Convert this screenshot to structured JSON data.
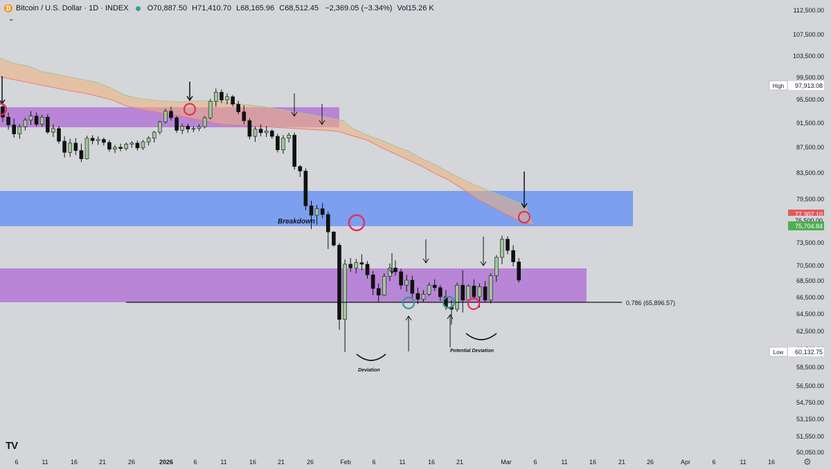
{
  "header": {
    "badge": "₿",
    "symbol": "Bitcoin / U.S. Dollar · 1D · INDEX",
    "open_label": "O",
    "open": "70,887.50",
    "high_label": "H",
    "high": "71,410.70",
    "low_label": "L",
    "low": "68,165.96",
    "close_label": "C",
    "close": "68,512.45",
    "change": "−2,369.05 (−3.34%)",
    "vol_label": "Vol",
    "vol": "15.26 K",
    "collapse_glyph": "⌄"
  },
  "footer": {
    "logo": "TV",
    "settings_icon": "⚙"
  },
  "colors": {
    "background": "#d4d6da",
    "candle_up": "#9fc79a",
    "candle_down": "#111111",
    "purple_zone": "#b06ad6",
    "blue_zone": "#5f8cf5",
    "red_circle": "#e0305a",
    "teal_circle": "#2a9d8f"
  },
  "chart_data": {
    "type": "candlestick",
    "y_axis_ticks": [
      "112,500.00",
      "107,500.00",
      "103,500.00",
      "99,500.00",
      "95,500.00",
      "91,500.00",
      "87,500.00",
      "83,500.00",
      "79,500.00",
      "73,500.00",
      "70,500.00",
      "68,500.00",
      "66,500.00",
      "64,500.00",
      "62,500.00",
      "60,500.00",
      "58,500.00",
      "56,500.00",
      "54,750.00",
      "53,150.00",
      "51,550.00",
      "50,050.00"
    ],
    "x_axis_ticks": [
      "6",
      "11",
      "16",
      "21",
      "26",
      "2026",
      "6",
      "11",
      "16",
      "21",
      "26",
      "Feb",
      "6",
      "11",
      "16",
      "21",
      "Mar",
      "6",
      "11",
      "16",
      "21",
      "26",
      "Apr",
      "6",
      "11",
      "16"
    ],
    "price_labels": [
      {
        "label": "High",
        "value": "97,913.08"
      },
      {
        "label": "",
        "value": "77,307.10"
      },
      {
        "label": "",
        "value": "76,500.00"
      },
      {
        "label": "",
        "value": "75,704.84"
      },
      {
        "label": "Low",
        "value": "60,132.75"
      }
    ],
    "fib_level": "0.786 (65,896.57)",
    "annotations": [
      "Breakdown",
      "Deviation",
      "Potential Deviation"
    ],
    "candles": [
      [
        94200,
        95100,
        91600,
        92400
      ],
      [
        92400,
        93200,
        90300,
        91100
      ],
      [
        91100,
        92200,
        89000,
        89600
      ],
      [
        89600,
        91200,
        88800,
        90800
      ],
      [
        90800,
        92300,
        90200,
        91900
      ],
      [
        91900,
        93400,
        91100,
        92600
      ],
      [
        92600,
        93200,
        90800,
        91200
      ],
      [
        91200,
        92800,
        90800,
        92400
      ],
      [
        92400,
        92900,
        89600,
        89900
      ],
      [
        89900,
        91200,
        89100,
        90500
      ],
      [
        90500,
        90900,
        88000,
        88400
      ],
      [
        88400,
        89200,
        85800,
        86600
      ],
      [
        86600,
        88800,
        85900,
        88100
      ],
      [
        88100,
        88900,
        86200,
        86900
      ],
      [
        86900,
        88000,
        85100,
        85600
      ],
      [
        85600,
        89300,
        85500,
        88900
      ],
      [
        88900,
        89400,
        87900,
        88500
      ],
      [
        88500,
        89200,
        87800,
        88700
      ],
      [
        88700,
        89000,
        87700,
        88200
      ],
      [
        88200,
        88600,
        86700,
        87100
      ],
      [
        87100,
        87800,
        86500,
        87400
      ],
      [
        87400,
        88000,
        86800,
        87200
      ],
      [
        87200,
        88200,
        86900,
        87900
      ],
      [
        87900,
        88400,
        87300,
        88100
      ],
      [
        88100,
        88500,
        86900,
        87300
      ],
      [
        87300,
        88600,
        87000,
        88300
      ],
      [
        88300,
        89200,
        87700,
        88900
      ],
      [
        88900,
        90100,
        88200,
        89900
      ],
      [
        89900,
        91800,
        89500,
        91600
      ],
      [
        91600,
        93800,
        91300,
        93400
      ],
      [
        93400,
        94200,
        91800,
        92300
      ],
      [
        92300,
        92600,
        89800,
        90200
      ],
      [
        90200,
        91300,
        89600,
        90900
      ],
      [
        90900,
        91300,
        89800,
        90400
      ],
      [
        90400,
        90900,
        89900,
        90500
      ],
      [
        90500,
        91200,
        90100,
        90800
      ],
      [
        90800,
        92600,
        90500,
        92300
      ],
      [
        92300,
        95500,
        92000,
        95100
      ],
      [
        95100,
        97400,
        94200,
        96700
      ],
      [
        96700,
        97200,
        94800,
        95300
      ],
      [
        95300,
        96500,
        94600,
        95900
      ],
      [
        95900,
        96200,
        94200,
        94600
      ],
      [
        94600,
        95200,
        92900,
        93300
      ],
      [
        93300,
        94400,
        91200,
        91800
      ],
      [
        91800,
        92200,
        88700,
        89200
      ],
      [
        89200,
        90800,
        88300,
        90400
      ],
      [
        90400,
        91200,
        89200,
        89800
      ],
      [
        89800,
        90900,
        89100,
        90100
      ],
      [
        90100,
        90400,
        88800,
        89200
      ],
      [
        89200,
        89600,
        86600,
        87000
      ],
      [
        87000,
        89400,
        86400,
        88900
      ],
      [
        88900,
        89800,
        88200,
        89400
      ],
      [
        89400,
        89800,
        83900,
        84400
      ],
      [
        84400,
        84600,
        82800,
        83700
      ],
      [
        83700,
        84100,
        77900,
        78500
      ],
      [
        78500,
        79200,
        75300,
        77200
      ],
      [
        77200,
        78600,
        75900,
        78100
      ],
      [
        78100,
        78900,
        76800,
        77300
      ],
      [
        77300,
        77700,
        72600,
        74900
      ],
      [
        74900,
        75000,
        72900,
        73100
      ],
      [
        73100,
        73400,
        62600,
        63800
      ],
      [
        63800,
        71200,
        60130,
        70600
      ],
      [
        70600,
        71400,
        69600,
        70100
      ],
      [
        70100,
        71300,
        69400,
        70800
      ],
      [
        70800,
        71900,
        69800,
        70600
      ],
      [
        70600,
        71000,
        68700,
        69200
      ],
      [
        69200,
        69700,
        66700,
        67500
      ],
      [
        67500,
        68100,
        65900,
        66700
      ],
      [
        66700,
        69400,
        66600,
        69000
      ],
      [
        69000,
        70700,
        68400,
        70100
      ],
      [
        70100,
        71100,
        69100,
        69600
      ],
      [
        69600,
        70000,
        67400,
        67900
      ],
      [
        67900,
        69200,
        67100,
        68500
      ],
      [
        68500,
        69100,
        66400,
        66900
      ],
      [
        66900,
        67600,
        65600,
        66200
      ],
      [
        66200,
        67300,
        65900,
        66800
      ],
      [
        66800,
        68200,
        66600,
        67900
      ],
      [
        67900,
        68600,
        67200,
        67600
      ],
      [
        67600,
        67900,
        66000,
        66500
      ],
      [
        66500,
        67300,
        64900,
        65300
      ],
      [
        65300,
        66100,
        63200,
        65000
      ],
      [
        65000,
        68200,
        64700,
        67900
      ],
      [
        67900,
        69800,
        64600,
        66100
      ],
      [
        66100,
        68000,
        65800,
        67800
      ],
      [
        67800,
        68600,
        66200,
        66500
      ],
      [
        66500,
        68100,
        65200,
        67700
      ],
      [
        67700,
        68400,
        65800,
        66100
      ],
      [
        66100,
        69400,
        65700,
        69100
      ],
      [
        69100,
        71800,
        68300,
        71500
      ],
      [
        71500,
        74400,
        70600,
        73900
      ],
      [
        73900,
        74300,
        71900,
        72400
      ],
      [
        72400,
        73100,
        70300,
        70900
      ],
      [
        70900,
        71400,
        68200,
        68500
      ]
    ],
    "cloud_top": [
      [
        0,
        103000
      ],
      [
        20,
        102000
      ],
      [
        40,
        101500
      ],
      [
        60,
        100500
      ],
      [
        80,
        100000
      ],
      [
        100,
        99500
      ],
      [
        120,
        99000
      ],
      [
        140,
        98500
      ],
      [
        160,
        97500
      ],
      [
        180,
        96200
      ],
      [
        200,
        95600
      ],
      [
        230,
        95200
      ],
      [
        260,
        95000
      ],
      [
        290,
        95200
      ],
      [
        320,
        95000
      ],
      [
        350,
        94600
      ],
      [
        380,
        94200
      ],
      [
        410,
        93600
      ],
      [
        440,
        93000
      ],
      [
        470,
        92400
      ],
      [
        495,
        91800
      ],
      [
        510,
        90500
      ],
      [
        530,
        89400
      ],
      [
        550,
        88600
      ],
      [
        570,
        87600
      ],
      [
        590,
        86800
      ],
      [
        610,
        85600
      ],
      [
        630,
        84600
      ],
      [
        650,
        83400
      ],
      [
        670,
        82300
      ],
      [
        690,
        81400
      ],
      [
        710,
        80500
      ],
      [
        730,
        79700
      ],
      [
        750,
        78900
      ],
      [
        760,
        78500
      ]
    ],
    "cloud_bottom": [
      [
        0,
        99500
      ],
      [
        20,
        99000
      ],
      [
        40,
        98500
      ],
      [
        60,
        98000
      ],
      [
        80,
        97500
      ],
      [
        100,
        97000
      ],
      [
        120,
        96600
      ],
      [
        140,
        96000
      ],
      [
        160,
        95400
      ],
      [
        180,
        94400
      ],
      [
        200,
        93800
      ],
      [
        230,
        93200
      ],
      [
        260,
        92600
      ],
      [
        290,
        91900
      ],
      [
        320,
        91200
      ],
      [
        350,
        91000
      ],
      [
        380,
        90800
      ],
      [
        410,
        90600
      ],
      [
        440,
        90400
      ],
      [
        470,
        90200
      ],
      [
        490,
        90000
      ],
      [
        500,
        89600
      ],
      [
        530,
        88600
      ],
      [
        550,
        87400
      ],
      [
        570,
        86400
      ],
      [
        590,
        85400
      ],
      [
        610,
        84400
      ],
      [
        630,
        83200
      ],
      [
        650,
        82200
      ],
      [
        670,
        80800
      ],
      [
        690,
        79400
      ],
      [
        710,
        78400
      ],
      [
        730,
        77400
      ],
      [
        750,
        76400
      ],
      [
        770,
        75900
      ]
    ]
  }
}
